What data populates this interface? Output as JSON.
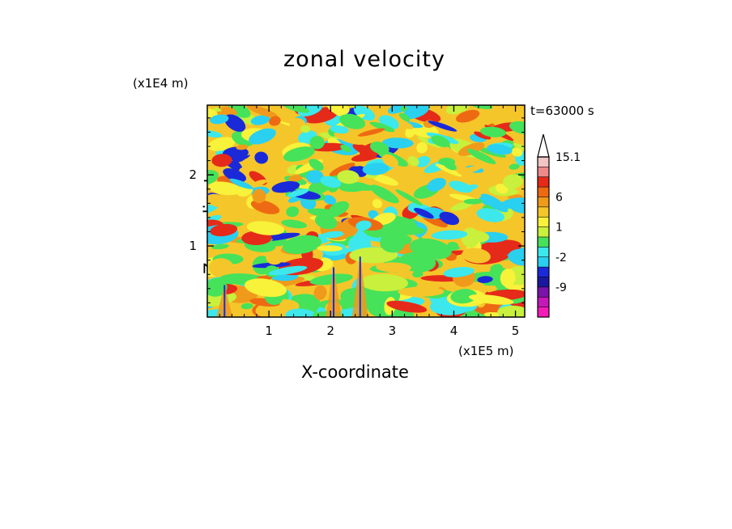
{
  "chart_data": {
    "type": "heatmap",
    "title": "zonal velocity",
    "xlabel": "X-coordinate",
    "ylabel": "Z-coordinate",
    "x_unit_label": "(x1E5 m)",
    "y_unit_label": "(x1E4 m)",
    "time_label": "t=63000 s",
    "xlim": [
      0,
      5.15
    ],
    "ylim": [
      0,
      2.98
    ],
    "x_ticks": [
      "1",
      "2",
      "3",
      "4",
      "5"
    ],
    "y_ticks": [
      "1",
      "2"
    ],
    "colorbar": {
      "labels": [
        "15.1",
        "6",
        "1",
        "-2",
        "-9"
      ],
      "levels": [
        "15.1",
        "13",
        "10",
        "8",
        "6",
        "4",
        "2",
        "1",
        "0",
        "-1",
        "-2",
        "-4",
        "-7",
        "-9",
        "-12",
        "-15"
      ],
      "colors": [
        "#f2c4c4",
        "#ee8a8a",
        "#e52a1a",
        "#ee6a12",
        "#f09a1c",
        "#f5c62a",
        "#f8f23a",
        "#c8f03c",
        "#46e25a",
        "#3ce8ec",
        "#2ad0f0",
        "#1a2ad8",
        "#1a18a0",
        "#7a14a8",
        "#c418b8",
        "#f41ab8"
      ]
    }
  },
  "colors": {
    "background": "#ffffff",
    "field_base": "#f5c62a"
  }
}
